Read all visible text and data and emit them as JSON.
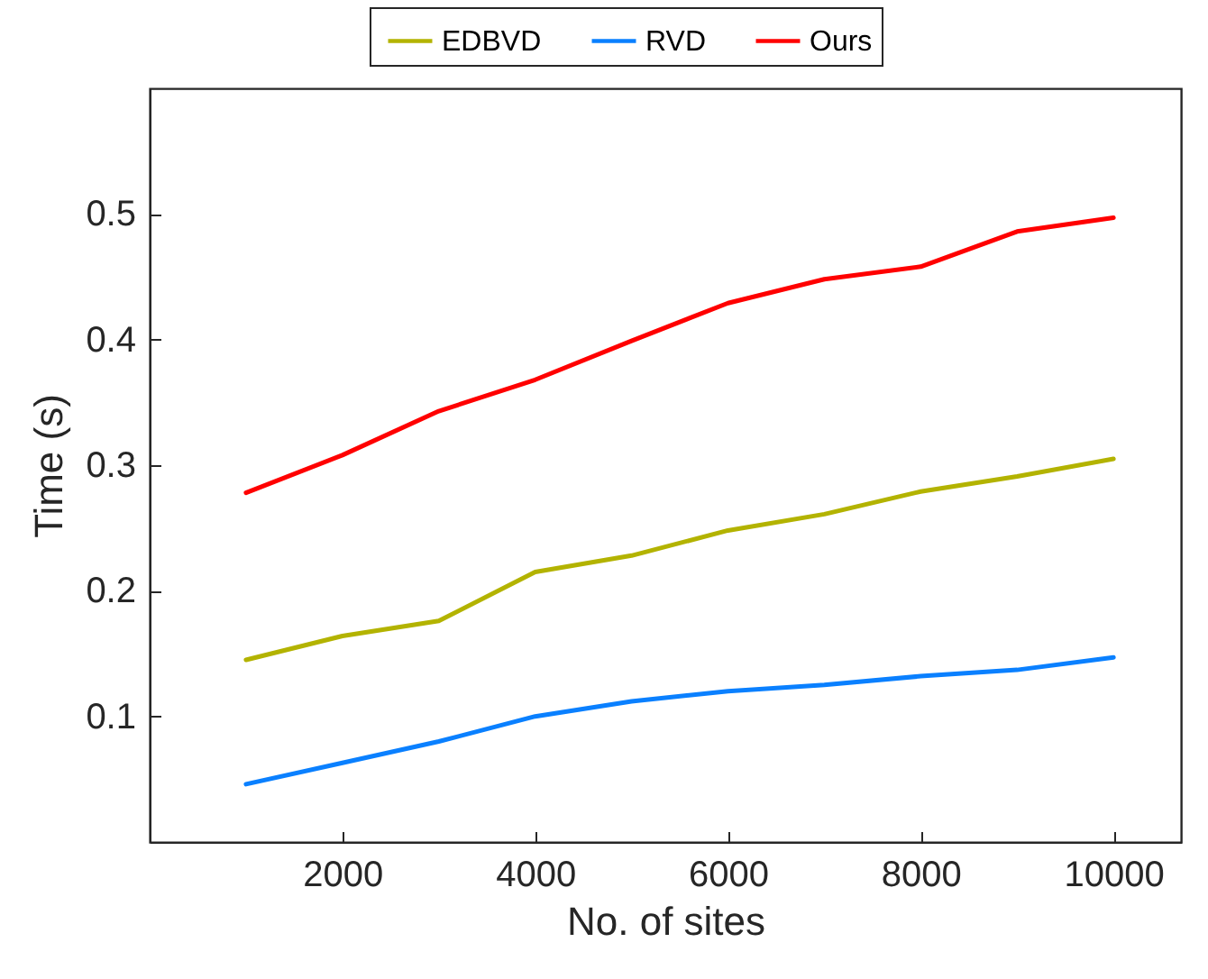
{
  "chart_data": {
    "type": "line",
    "xlabel": "No. of sites",
    "ylabel": "Time (s)",
    "x": [
      1000,
      2000,
      3000,
      4000,
      5000,
      6000,
      7000,
      8000,
      9000,
      10000
    ],
    "series": [
      {
        "name": "EDBVD",
        "color": "#b3b300",
        "values": [
          0.145,
          0.164,
          0.176,
          0.215,
          0.228,
          0.248,
          0.261,
          0.279,
          0.291,
          0.305
        ]
      },
      {
        "name": "RVD",
        "color": "#0a80ff",
        "values": [
          0.046,
          0.063,
          0.08,
          0.1,
          0.112,
          0.12,
          0.125,
          0.132,
          0.137,
          0.147
        ]
      },
      {
        "name": "Ours",
        "color": "#ff0000",
        "values": [
          0.278,
          0.308,
          0.343,
          0.368,
          0.399,
          0.429,
          0.448,
          0.458,
          0.486,
          0.497
        ]
      }
    ],
    "xlim": [
      0,
      10700
    ],
    "xticks": [
      2000,
      4000,
      6000,
      8000,
      10000
    ],
    "ylim": [
      0,
      0.6
    ],
    "yticks": [
      0.1,
      0.2,
      0.3,
      0.4,
      0.5
    ],
    "grid": false,
    "legend": "top",
    "marker": "none",
    "line_style": "solid"
  }
}
